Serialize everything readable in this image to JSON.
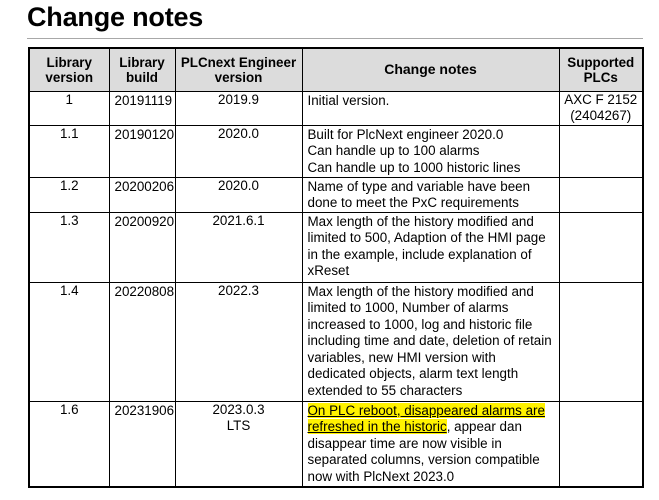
{
  "page": {
    "heading": "Change notes"
  },
  "table": {
    "headers": {
      "library_version": "Library version",
      "library_build": "Library build",
      "plcnext_engineer_version": "PLCnext Engineer version",
      "change_notes": "Change notes",
      "supported_plcs": "Supported PLCs"
    },
    "rows": [
      {
        "library_version": "1",
        "library_build": "20191119",
        "engineer_version": "2019.9",
        "notes": "Initial version.",
        "supported_plcs": "AXC F 2152 (2404267)"
      },
      {
        "library_version": "1.1",
        "library_build": "20190120",
        "engineer_version": "2020.0",
        "notes": "Built for PlcNext engineer 2020.0\nCan handle up to 100 alarms\nCan handle up to 1000 historic lines",
        "supported_plcs": ""
      },
      {
        "library_version": "1.2",
        "library_build": "20200206",
        "engineer_version": "2020.0",
        "notes": "Name of type and variable have been done to meet the PxC requirements",
        "supported_plcs": ""
      },
      {
        "library_version": "1.3",
        "library_build": "20200920",
        "engineer_version": "2021.6.1",
        "notes": "Max length of the history modified and limited to 500, Adaption of the HMI page in the example, include explanation of xReset",
        "supported_plcs": ""
      },
      {
        "library_version": "1.4",
        "library_build": "20220808",
        "engineer_version": "2022.3",
        "notes": "Max length of the history modified and limited to 1000, Number of alarms increased to 1000, log and historic file including time and date, deletion of retain variables, new HMI version with dedicated objects, alarm text length extended to 55 characters",
        "supported_plcs": ""
      },
      {
        "library_version": "1.6",
        "library_build": "20231906",
        "engineer_version": "2023.0.3 LTS",
        "notes_highlighted": "On PLC reboot, disappeared alarms are refreshed in the historic",
        "notes_rest": ", appear dan disappear time are now visible in separated columns, version compatible now with PlcNext 2023.0",
        "supported_plcs": ""
      }
    ]
  }
}
